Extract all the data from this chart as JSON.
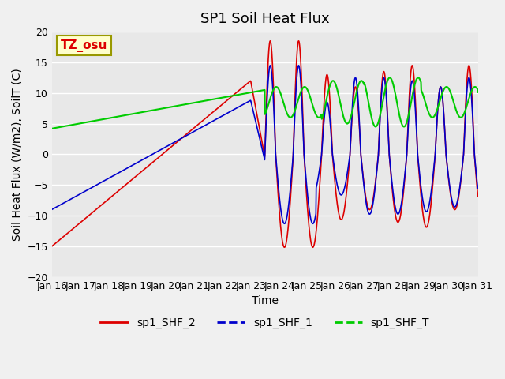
{
  "title": "SP1 Soil Heat Flux",
  "xlabel": "Time",
  "ylabel": "Soil Heat Flux (W/m2), SoilT (C)",
  "ylim": [
    -20,
    20
  ],
  "yticks": [
    -20,
    -15,
    -10,
    -5,
    0,
    5,
    10,
    15,
    20
  ],
  "xtick_labels": [
    "Jan 16",
    "Jan 17",
    "Jan 18",
    "Jan 19",
    "Jan 20",
    "Jan 21",
    "Jan 22",
    "Jan 23",
    "Jan 24",
    "Jan 25",
    "Jan 26",
    "Jan 27",
    "Jan 28",
    "Jan 29",
    "Jan 30",
    "Jan 31"
  ],
  "legend_labels": [
    "sp1_SHF_2",
    "sp1_SHF_1",
    "sp1_SHF_T"
  ],
  "line_colors": [
    "#dd0000",
    "#0000cc",
    "#00cc00"
  ],
  "annotation_text": "TZ_osu",
  "annotation_color": "#dd0000",
  "annotation_bbox_facecolor": "#ffffcc",
  "annotation_bbox_edgecolor": "#999900",
  "plot_bg_color": "#e8e8e8",
  "fig_bg_color": "#f0f0f0",
  "grid_color": "#ffffff",
  "title_fontsize": 13,
  "axis_label_fontsize": 10,
  "tick_label_fontsize": 9
}
